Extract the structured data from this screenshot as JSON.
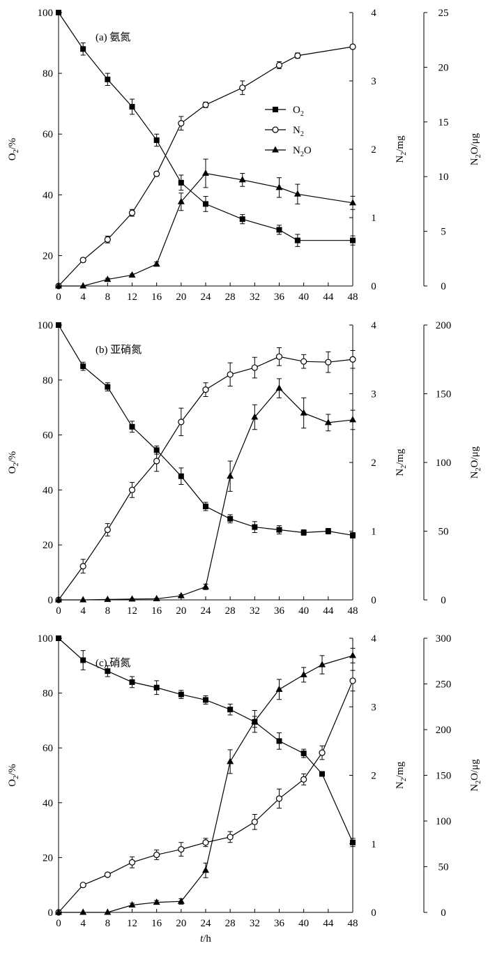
{
  "figure": {
    "shared_xlabel_italic": "t",
    "shared_xlabel_rest": "/h"
  },
  "chart_data": [
    {
      "type": "line",
      "panel_label": "(a) 氨氮",
      "x_ticks": [
        0,
        4,
        8,
        12,
        16,
        20,
        24,
        28,
        32,
        36,
        40,
        44,
        48
      ],
      "xlim": [
        0,
        48
      ],
      "y_left": {
        "label_main": "O",
        "label_sub": "2",
        "label_rest": "/%",
        "lim": [
          10,
          100
        ],
        "ticks": [
          20,
          40,
          60,
          80,
          100
        ]
      },
      "y_right1": {
        "label_main": "N",
        "label_sub": "2",
        "label_rest": "/mg",
        "lim": [
          0,
          4
        ],
        "ticks": [
          0,
          1,
          2,
          3,
          4
        ]
      },
      "y_right2": {
        "label_main": "N",
        "label_sub": "2",
        "label_rest": "O/μg",
        "lim": [
          0,
          25
        ],
        "ticks": [
          0,
          5,
          10,
          15,
          20,
          25
        ]
      },
      "legend": {
        "position": "center-right",
        "entries": [
          {
            "main": "O",
            "sub": "2",
            "rest": "",
            "marker": "square"
          },
          {
            "main": "N",
            "sub": "2",
            "rest": "",
            "marker": "circle"
          },
          {
            "main": "N",
            "sub": "2",
            "rest": "O",
            "marker": "triangle"
          }
        ]
      },
      "series": [
        {
          "marker": "square",
          "axis": "left",
          "x": [
            0,
            4,
            8,
            12,
            16,
            20,
            24,
            30,
            36,
            39,
            48
          ],
          "y": [
            100,
            88,
            78,
            69,
            58,
            44,
            37,
            32,
            28.5,
            25,
            25
          ],
          "err": [
            0,
            2,
            2,
            2.5,
            2,
            2.5,
            2.5,
            1.5,
            1.5,
            2,
            1.5
          ]
        },
        {
          "marker": "circle",
          "axis": "right1",
          "x": [
            0,
            4,
            8,
            12,
            16,
            20,
            24,
            30,
            36,
            39,
            48
          ],
          "y": [
            0,
            0.38,
            0.68,
            1.07,
            1.64,
            2.38,
            2.65,
            2.9,
            3.23,
            3.37,
            3.5
          ],
          "err": [
            0,
            0.03,
            0.05,
            0.05,
            0.03,
            0.1,
            0.04,
            0.1,
            0.05,
            0.04,
            0.03
          ]
        },
        {
          "marker": "triangle",
          "axis": "right2",
          "x": [
            0,
            4,
            8,
            12,
            16,
            20,
            24,
            30,
            36,
            39,
            48
          ],
          "y": [
            0,
            0,
            0.6,
            1.0,
            2.0,
            7.7,
            10.3,
            9.7,
            9.0,
            8.4,
            7.6
          ],
          "err": [
            0,
            0,
            0.1,
            0.1,
            0.2,
            0.8,
            1.3,
            0.6,
            0.9,
            0.9,
            0.6
          ]
        }
      ]
    },
    {
      "type": "line",
      "panel_label": "(b) 亚硝氮",
      "x_ticks": [
        0,
        4,
        8,
        12,
        16,
        20,
        24,
        28,
        32,
        36,
        40,
        44,
        48
      ],
      "xlim": [
        0,
        48
      ],
      "y_left": {
        "label_main": "O",
        "label_sub": "2",
        "label_rest": "/%",
        "lim": [
          0,
          100
        ],
        "ticks": [
          0,
          20,
          40,
          60,
          80,
          100
        ]
      },
      "y_right1": {
        "label_main": "N",
        "label_sub": "2",
        "label_rest": "/mg",
        "lim": [
          0,
          4
        ],
        "ticks": [
          0,
          1,
          2,
          3,
          4
        ]
      },
      "y_right2": {
        "label_main": "N",
        "label_sub": "2",
        "label_rest": "O/μg",
        "lim": [
          0,
          200
        ],
        "ticks": [
          0,
          50,
          100,
          150,
          200
        ]
      },
      "series": [
        {
          "marker": "square",
          "axis": "left",
          "x": [
            0,
            4,
            8,
            12,
            16,
            20,
            24,
            28,
            32,
            36,
            40,
            44,
            48
          ],
          "y": [
            100,
            85,
            77.5,
            63,
            54.5,
            45,
            34,
            29.5,
            26.5,
            25.5,
            24.5,
            25,
            23.5
          ],
          "err": [
            0,
            1.5,
            1.5,
            2,
            1.5,
            3,
            1.5,
            1.5,
            2,
            1.5,
            1,
            1,
            1
          ]
        },
        {
          "marker": "circle",
          "axis": "right1",
          "x": [
            0,
            4,
            8,
            12,
            16,
            20,
            24,
            28,
            32,
            36,
            40,
            44,
            48
          ],
          "y": [
            0,
            0.49,
            1.02,
            1.6,
            2.02,
            2.59,
            3.06,
            3.28,
            3.38,
            3.54,
            3.47,
            3.46,
            3.5
          ],
          "err": [
            0,
            0.1,
            0.09,
            0.11,
            0.15,
            0.2,
            0.1,
            0.17,
            0.15,
            0.13,
            0.1,
            0.15,
            0.13
          ]
        },
        {
          "marker": "triangle",
          "axis": "right2",
          "x": [
            0,
            4,
            8,
            12,
            16,
            20,
            24,
            28,
            32,
            36,
            40,
            44,
            48
          ],
          "y": [
            0,
            0,
            0.3,
            0.6,
            0.8,
            3,
            9.5,
            90,
            133,
            154,
            136,
            129,
            131
          ],
          "err": [
            0,
            0,
            0.2,
            0.2,
            0.3,
            0.8,
            2,
            11,
            9,
            7,
            11,
            6,
            7
          ]
        }
      ]
    },
    {
      "type": "line",
      "panel_label": "(c) 硝氮",
      "x_ticks": [
        0,
        4,
        8,
        12,
        16,
        20,
        24,
        28,
        32,
        36,
        40,
        44,
        48
      ],
      "xlim": [
        0,
        48
      ],
      "y_left": {
        "label_main": "O",
        "label_sub": "2",
        "label_rest": "/%",
        "lim": [
          0,
          100
        ],
        "ticks": [
          0,
          20,
          40,
          60,
          80,
          100
        ]
      },
      "y_right1": {
        "label_main": "N",
        "label_sub": "2",
        "label_rest": "/mg",
        "lim": [
          0,
          4
        ],
        "ticks": [
          0,
          1,
          2,
          3,
          4
        ]
      },
      "y_right2": {
        "label_main": "N",
        "label_sub": "2",
        "label_rest": "O/μg",
        "lim": [
          0,
          300
        ],
        "ticks": [
          0,
          50,
          100,
          150,
          200,
          250,
          300
        ]
      },
      "series": [
        {
          "marker": "square",
          "axis": "left",
          "x": [
            0,
            4,
            8,
            12,
            16,
            20,
            24,
            28,
            32,
            36,
            40,
            43,
            48
          ],
          "y": [
            100,
            92,
            88,
            84,
            82,
            79.5,
            77.5,
            74,
            69.5,
            62.5,
            58,
            50.5,
            25.5
          ],
          "err": [
            0,
            3.5,
            2,
            2,
            2.5,
            1.5,
            1.5,
            2,
            2,
            3,
            1.5,
            0.8,
            1.5
          ]
        },
        {
          "marker": "circle",
          "axis": "right1",
          "x": [
            0,
            4,
            8,
            12,
            16,
            20,
            24,
            28,
            32,
            36,
            40,
            43,
            48
          ],
          "y": [
            0,
            0.4,
            0.55,
            0.73,
            0.84,
            0.92,
            1.02,
            1.1,
            1.32,
            1.66,
            1.94,
            2.33,
            3.38
          ],
          "err": [
            0,
            0.02,
            0.03,
            0.08,
            0.07,
            0.1,
            0.06,
            0.08,
            0.11,
            0.14,
            0.08,
            0.1,
            0.15
          ]
        },
        {
          "marker": "triangle",
          "axis": "right2",
          "x": [
            0,
            4,
            8,
            12,
            16,
            20,
            24,
            28,
            32,
            36,
            40,
            43,
            48
          ],
          "y": [
            0,
            0,
            0,
            8,
            11,
            12,
            46,
            165,
            209,
            244,
            260,
            271,
            281
          ],
          "err": [
            0,
            0,
            0,
            2,
            2,
            3,
            8,
            13,
            12,
            11,
            8,
            10,
            8
          ]
        }
      ]
    }
  ]
}
